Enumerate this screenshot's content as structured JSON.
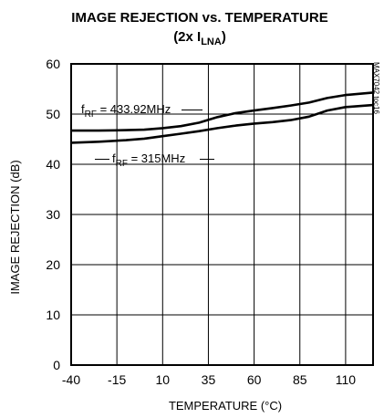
{
  "chart_data": {
    "type": "line",
    "title": "IMAGE REJECTION vs. TEMPERATURE",
    "subtitle_prefix": "(2x I",
    "subtitle_sub": "LNA",
    "subtitle_suffix": ")",
    "xlabel": "TEMPERATURE (°C)",
    "ylabel": "IMAGE REJECTION (dB)",
    "xlim": [
      -40,
      125
    ],
    "ylim": [
      0,
      60
    ],
    "xticks": [
      -40,
      -15,
      10,
      35,
      60,
      85,
      110
    ],
    "yticks": [
      0,
      10,
      20,
      30,
      40,
      50,
      60
    ],
    "grid": true,
    "side_note": "MAX7042 toc16",
    "series": [
      {
        "label_main": "f",
        "label_sub": "RF",
        "label_rest": " = 433.92MHz",
        "x": [
          -40,
          -25,
          -10,
          0,
          10,
          20,
          30,
          40,
          50,
          60,
          70,
          80,
          90,
          100,
          110,
          125
        ],
        "y": [
          46.7,
          46.7,
          46.8,
          46.9,
          47.2,
          47.6,
          48.3,
          49.4,
          50.2,
          50.7,
          51.2,
          51.7,
          52.3,
          53.2,
          53.8,
          54.3
        ]
      },
      {
        "label_main": "f",
        "label_sub": "RF",
        "label_rest": " = 315MHz",
        "x": [
          -40,
          -25,
          -10,
          0,
          10,
          20,
          30,
          40,
          50,
          60,
          70,
          80,
          90,
          100,
          110,
          125
        ],
        "y": [
          44.3,
          44.5,
          44.8,
          45.1,
          45.6,
          46.1,
          46.6,
          47.2,
          47.7,
          48.1,
          48.4,
          48.8,
          49.5,
          50.7,
          51.4,
          51.8
        ]
      }
    ]
  }
}
